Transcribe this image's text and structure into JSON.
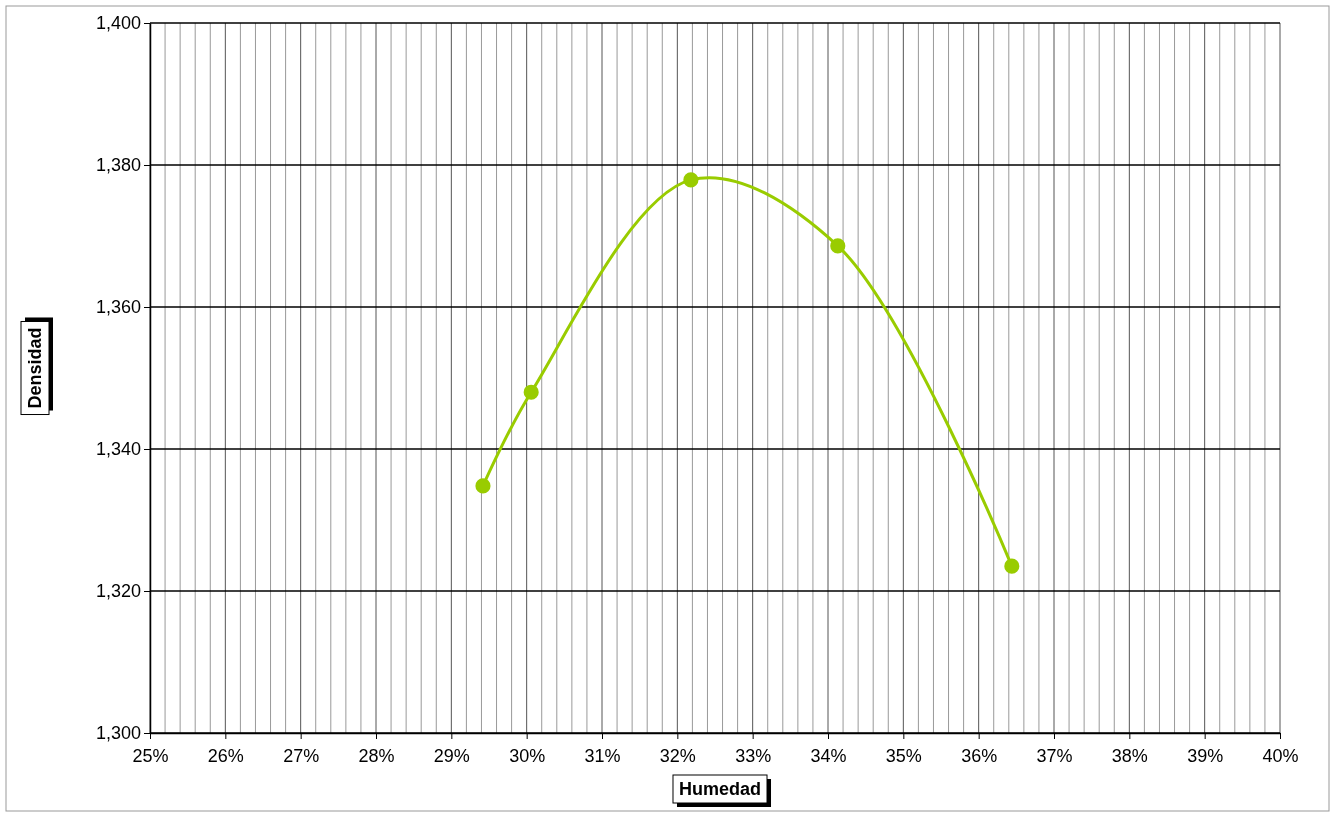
{
  "chart_data": {
    "type": "line",
    "xlabel": "Humedad",
    "ylabel": "Densidad",
    "x": [
      29.42,
      30.06,
      32.18,
      34.13,
      36.44
    ],
    "series": [
      {
        "color": "#99cc00",
        "values": [
          1334.8,
          1348,
          1377.9,
          1368.6,
          1323.5
        ]
      }
    ],
    "xlim": [
      25,
      40
    ],
    "xticks": [
      {
        "value": 25,
        "label": "25%"
      },
      {
        "value": 25.2,
        "label": null
      },
      {
        "value": 25.4,
        "label": null
      },
      {
        "value": 25.6,
        "label": null
      },
      {
        "value": 25.8,
        "label": null
      },
      {
        "value": 26,
        "label": "26%"
      },
      {
        "value": 26.2,
        "label": null
      },
      {
        "value": 26.4,
        "label": null
      },
      {
        "value": 26.6,
        "label": null
      },
      {
        "value": 26.8,
        "label": null
      },
      {
        "value": 27,
        "label": "27%"
      },
      {
        "value": 27.2,
        "label": null
      },
      {
        "value": 27.4,
        "label": null
      },
      {
        "value": 27.6,
        "label": null
      },
      {
        "value": 27.8,
        "label": null
      },
      {
        "value": 28,
        "label": "28%"
      },
      {
        "value": 28.2,
        "label": null
      },
      {
        "value": 28.4,
        "label": null
      },
      {
        "value": 28.6,
        "label": null
      },
      {
        "value": 28.8,
        "label": null
      },
      {
        "value": 29,
        "label": "29%"
      },
      {
        "value": 29.2,
        "label": null
      },
      {
        "value": 29.4,
        "label": null
      },
      {
        "value": 29.6,
        "label": null
      },
      {
        "value": 29.8,
        "label": null
      },
      {
        "value": 30,
        "label": "30%"
      },
      {
        "value": 30.2,
        "label": null
      },
      {
        "value": 30.4,
        "label": null
      },
      {
        "value": 30.6,
        "label": null
      },
      {
        "value": 30.8,
        "label": null
      },
      {
        "value": 31,
        "label": "31%"
      },
      {
        "value": 31.2,
        "label": null
      },
      {
        "value": 31.4,
        "label": null
      },
      {
        "value": 31.6,
        "label": null
      },
      {
        "value": 31.8,
        "label": null
      },
      {
        "value": 32,
        "label": "32%"
      },
      {
        "value": 32.2,
        "label": null
      },
      {
        "value": 32.4,
        "label": null
      },
      {
        "value": 32.6,
        "label": null
      },
      {
        "value": 32.8,
        "label": null
      },
      {
        "value": 33,
        "label": "33%"
      },
      {
        "value": 33.2,
        "label": null
      },
      {
        "value": 33.4,
        "label": null
      },
      {
        "value": 33.6,
        "label": null
      },
      {
        "value": 33.8,
        "label": null
      },
      {
        "value": 34,
        "label": "34%"
      },
      {
        "value": 34.2,
        "label": null
      },
      {
        "value": 34.4,
        "label": null
      },
      {
        "value": 34.6,
        "label": null
      },
      {
        "value": 34.8,
        "label": null
      },
      {
        "value": 35,
        "label": "35%"
      },
      {
        "value": 35.2,
        "label": null
      },
      {
        "value": 35.4,
        "label": null
      },
      {
        "value": 35.6,
        "label": null
      },
      {
        "value": 35.8,
        "label": null
      },
      {
        "value": 36,
        "label": "36%"
      },
      {
        "value": 36.2,
        "label": null
      },
      {
        "value": 36.4,
        "label": null
      },
      {
        "value": 36.6,
        "label": null
      },
      {
        "value": 36.8,
        "label": null
      },
      {
        "value": 37,
        "label": "37%"
      },
      {
        "value": 37.2,
        "label": null
      },
      {
        "value": 37.4,
        "label": null
      },
      {
        "value": 37.6,
        "label": null
      },
      {
        "value": 37.8,
        "label": null
      },
      {
        "value": 38,
        "label": "38%"
      },
      {
        "value": 38.2,
        "label": null
      },
      {
        "value": 38.4,
        "label": null
      },
      {
        "value": 38.6,
        "label": null
      },
      {
        "value": 38.8,
        "label": null
      },
      {
        "value": 39,
        "label": "39%"
      },
      {
        "value": 39.2,
        "label": null
      },
      {
        "value": 39.4,
        "label": null
      },
      {
        "value": 39.6,
        "label": null
      },
      {
        "value": 39.8,
        "label": null
      },
      {
        "value": 40,
        "label": "40%"
      }
    ],
    "ylim": [
      1300,
      1400
    ],
    "yticks": [
      {
        "value": 1300,
        "label": "1,300"
      },
      {
        "value": 1320,
        "label": "1,320"
      },
      {
        "value": 1340,
        "label": "1,340"
      },
      {
        "value": 1360,
        "label": "1,360"
      },
      {
        "value": 1380,
        "label": "1,380"
      },
      {
        "value": 1400,
        "label": "1,400"
      }
    ],
    "grid": true,
    "marker": "circle",
    "line_style": "solid"
  }
}
